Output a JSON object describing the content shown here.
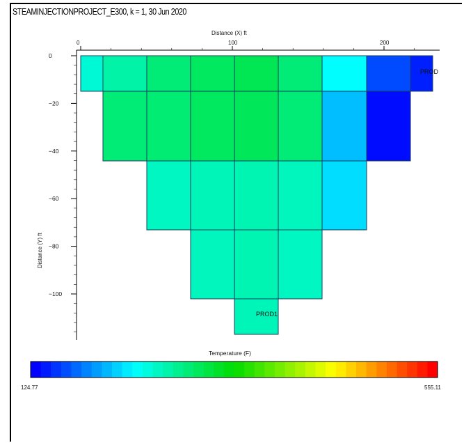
{
  "window": {
    "title": "STEAMINJECTIONPROJECT_E300, k = 1, 30 Jun 2020"
  },
  "plot": {
    "x_axis_label": "Distance (X)   ft",
    "y_axis_label": "Distance (Y)   ft",
    "x_ticks": [
      0,
      100,
      200
    ],
    "y_ticks": [
      0,
      -20,
      -40,
      -60,
      -80,
      -100
    ],
    "x_range": [
      0,
      236
    ],
    "y_range": [
      0,
      -118
    ],
    "grid_columns": 8,
    "wells": [
      {
        "name": "PROD",
        "column": 7,
        "row": 0
      },
      {
        "name": "PROD1",
        "column": 4,
        "row": 4
      }
    ],
    "cells": [
      {
        "col": 0,
        "row": 0,
        "temp": 250
      },
      {
        "col": 1,
        "row": 0,
        "temp": 270
      },
      {
        "col": 2,
        "row": 0,
        "temp": 290
      },
      {
        "col": 3,
        "row": 0,
        "temp": 300
      },
      {
        "col": 4,
        "row": 0,
        "temp": 305
      },
      {
        "col": 5,
        "row": 0,
        "temp": 290
      },
      {
        "col": 6,
        "row": 0,
        "temp": 232
      },
      {
        "col": 7,
        "row": 0,
        "temp": 156
      },
      {
        "col": 8,
        "row": 0,
        "temp": 138
      },
      {
        "col": 1,
        "row": 1,
        "temp": 290
      },
      {
        "col": 2,
        "row": 1,
        "temp": 292
      },
      {
        "col": 3,
        "row": 1,
        "temp": 300
      },
      {
        "col": 4,
        "row": 1,
        "temp": 302
      },
      {
        "col": 5,
        "row": 1,
        "temp": 290
      },
      {
        "col": 6,
        "row": 1,
        "temp": 205
      },
      {
        "col": 7,
        "row": 1,
        "temp": 130
      },
      {
        "col": 2,
        "row": 2,
        "temp": 258
      },
      {
        "col": 3,
        "row": 2,
        "temp": 262
      },
      {
        "col": 4,
        "row": 2,
        "temp": 265
      },
      {
        "col": 5,
        "row": 2,
        "temp": 260
      },
      {
        "col": 6,
        "row": 2,
        "temp": 218
      },
      {
        "col": 3,
        "row": 3,
        "temp": 260
      },
      {
        "col": 4,
        "row": 3,
        "temp": 265
      },
      {
        "col": 5,
        "row": 3,
        "temp": 258
      },
      {
        "col": 4,
        "row": 4,
        "temp": 262
      }
    ]
  },
  "colorbar": {
    "title": "Temperature  (F)",
    "min_label": "124.77",
    "max_label": "555.11",
    "min": 124.77,
    "max": 555.11,
    "steps": 40
  }
}
